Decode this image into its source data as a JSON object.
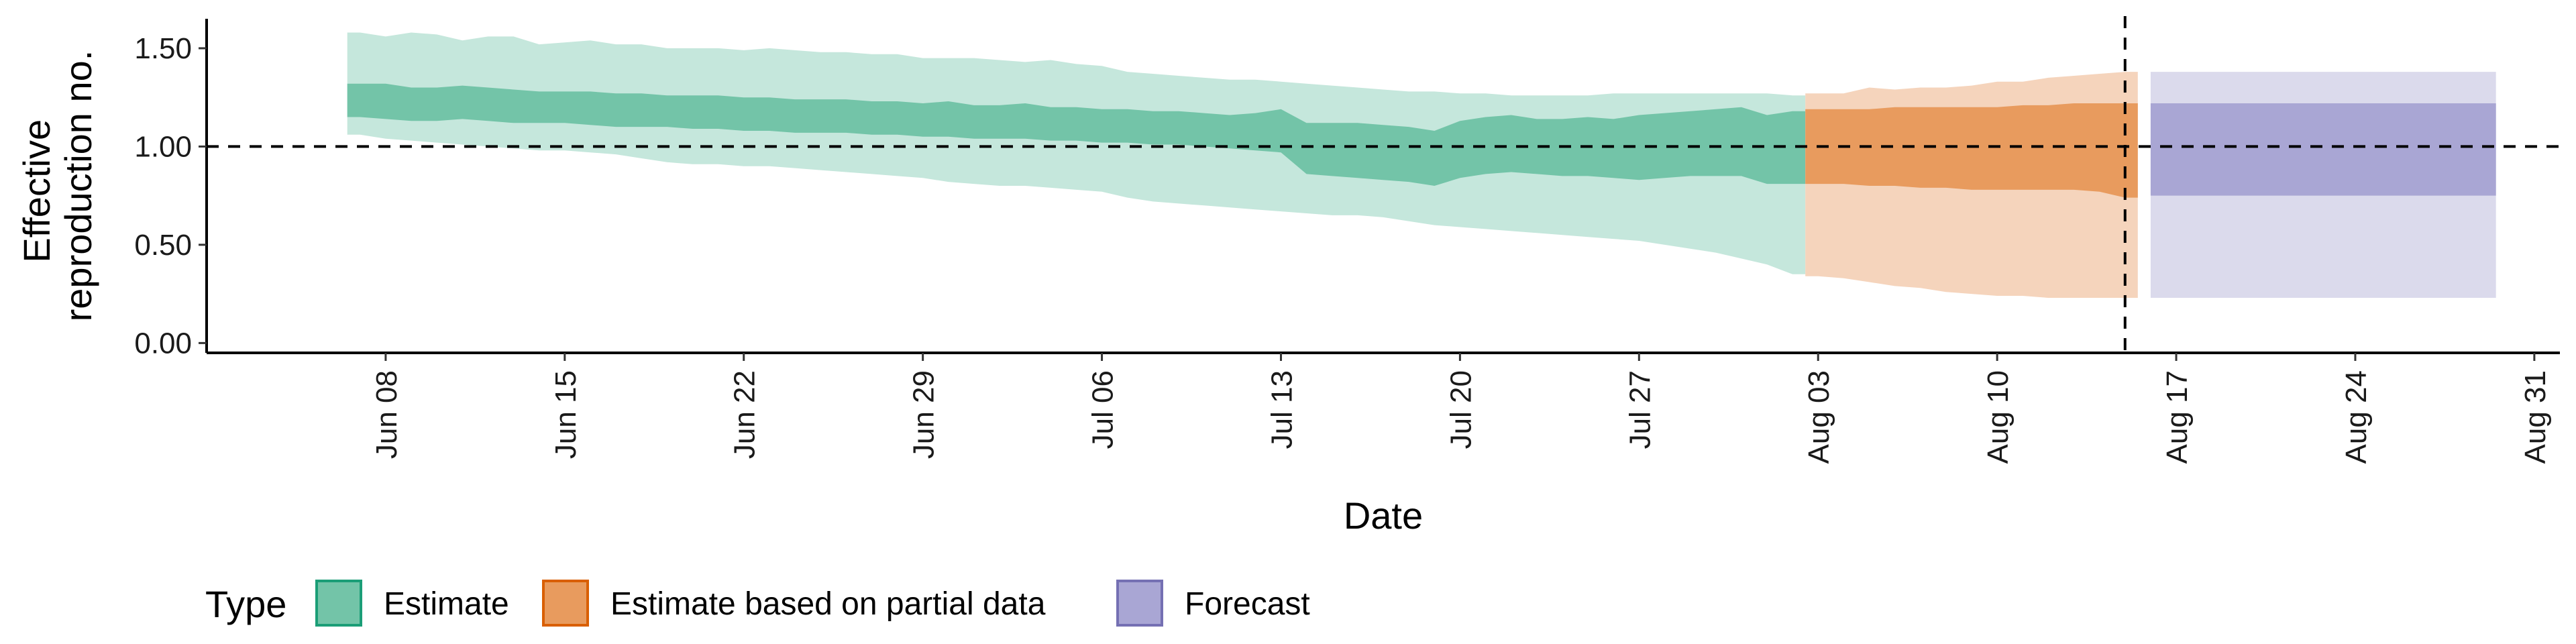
{
  "chart_data": {
    "type": "area",
    "xlabel": "Date",
    "ylabel_lines": [
      "Effective",
      "reproduction no."
    ],
    "x_type": "date",
    "xlim": [
      "2020-06-01",
      "2020-09-01"
    ],
    "ylim": [
      -0.05,
      1.65
    ],
    "y_ticks": [
      0.0,
      0.5,
      1.0,
      1.5
    ],
    "y_tick_labels": [
      "0.00",
      "0.50",
      "1.00",
      "1.50"
    ],
    "x_ticks": [
      "2020-06-08",
      "2020-06-15",
      "2020-06-22",
      "2020-06-29",
      "2020-07-06",
      "2020-07-13",
      "2020-07-20",
      "2020-07-27",
      "2020-08-03",
      "2020-08-10",
      "2020-08-17",
      "2020-08-24",
      "2020-08-31"
    ],
    "x_tick_labels": [
      "Jun 08",
      "Jun 15",
      "Jun 22",
      "Jun 29",
      "Jul 06",
      "Jul 13",
      "Jul 20",
      "Jul 27",
      "Aug 03",
      "Aug 10",
      "Aug 17",
      "Aug 24",
      "Aug 31"
    ],
    "reference_line_y": 1.0,
    "reference_line_x": "2020-08-15",
    "legend_title": "Type",
    "legend_position": "bottom-left",
    "series": [
      {
        "name": "Estimate",
        "color_dark": "#73c4a8",
        "color_light": "#c5e7dc",
        "x": [
          "2020-06-07",
          "2020-06-08",
          "2020-06-09",
          "2020-06-10",
          "2020-06-11",
          "2020-06-12",
          "2020-06-13",
          "2020-06-14",
          "2020-06-15",
          "2020-06-16",
          "2020-06-17",
          "2020-06-18",
          "2020-06-19",
          "2020-06-20",
          "2020-06-21",
          "2020-06-22",
          "2020-06-23",
          "2020-06-24",
          "2020-06-25",
          "2020-06-26",
          "2020-06-27",
          "2020-06-28",
          "2020-06-29",
          "2020-06-30",
          "2020-07-01",
          "2020-07-02",
          "2020-07-03",
          "2020-07-04",
          "2020-07-05",
          "2020-07-06",
          "2020-07-07",
          "2020-07-08",
          "2020-07-09",
          "2020-07-10",
          "2020-07-11",
          "2020-07-12",
          "2020-07-13",
          "2020-07-14",
          "2020-07-15",
          "2020-07-16",
          "2020-07-17",
          "2020-07-18",
          "2020-07-19",
          "2020-07-20",
          "2020-07-21",
          "2020-07-22",
          "2020-07-23",
          "2020-07-24",
          "2020-07-25",
          "2020-07-26",
          "2020-07-27",
          "2020-07-28",
          "2020-07-29",
          "2020-07-30",
          "2020-07-31",
          "2020-08-01",
          "2020-08-02"
        ],
        "upper90": [
          1.58,
          1.56,
          1.58,
          1.57,
          1.54,
          1.56,
          1.56,
          1.52,
          1.53,
          1.54,
          1.52,
          1.52,
          1.5,
          1.5,
          1.5,
          1.49,
          1.5,
          1.49,
          1.48,
          1.48,
          1.47,
          1.47,
          1.45,
          1.45,
          1.45,
          1.44,
          1.43,
          1.44,
          1.42,
          1.41,
          1.38,
          1.37,
          1.36,
          1.35,
          1.34,
          1.34,
          1.33,
          1.32,
          1.31,
          1.3,
          1.29,
          1.28,
          1.28,
          1.27,
          1.27,
          1.26,
          1.26,
          1.26,
          1.26,
          1.27,
          1.27,
          1.27,
          1.27,
          1.27,
          1.27,
          1.27,
          1.26
        ],
        "upper50": [
          1.32,
          1.32,
          1.3,
          1.3,
          1.31,
          1.3,
          1.29,
          1.28,
          1.28,
          1.28,
          1.27,
          1.27,
          1.26,
          1.26,
          1.26,
          1.25,
          1.25,
          1.24,
          1.24,
          1.24,
          1.23,
          1.23,
          1.22,
          1.23,
          1.21,
          1.21,
          1.22,
          1.2,
          1.2,
          1.19,
          1.19,
          1.18,
          1.18,
          1.17,
          1.16,
          1.17,
          1.19,
          1.12,
          1.12,
          1.12,
          1.11,
          1.1,
          1.08,
          1.13,
          1.15,
          1.16,
          1.14,
          1.14,
          1.15,
          1.14,
          1.16,
          1.17,
          1.18,
          1.19,
          1.2,
          1.16,
          1.18
        ],
        "lower50": [
          1.15,
          1.14,
          1.13,
          1.13,
          1.14,
          1.13,
          1.12,
          1.12,
          1.12,
          1.11,
          1.1,
          1.1,
          1.1,
          1.09,
          1.09,
          1.08,
          1.08,
          1.07,
          1.07,
          1.07,
          1.06,
          1.06,
          1.05,
          1.05,
          1.04,
          1.04,
          1.04,
          1.03,
          1.03,
          1.02,
          1.02,
          1.01,
          1.01,
          1.0,
          0.99,
          0.98,
          0.97,
          0.86,
          0.85,
          0.84,
          0.83,
          0.82,
          0.8,
          0.84,
          0.86,
          0.87,
          0.86,
          0.85,
          0.85,
          0.84,
          0.83,
          0.84,
          0.85,
          0.85,
          0.85,
          0.81,
          0.81
        ],
        "lower90": [
          1.06,
          1.04,
          1.03,
          1.02,
          1.01,
          1.0,
          0.99,
          0.98,
          0.98,
          0.97,
          0.96,
          0.94,
          0.92,
          0.91,
          0.91,
          0.9,
          0.9,
          0.89,
          0.88,
          0.87,
          0.86,
          0.85,
          0.84,
          0.82,
          0.81,
          0.8,
          0.8,
          0.79,
          0.78,
          0.77,
          0.74,
          0.72,
          0.71,
          0.7,
          0.69,
          0.68,
          0.67,
          0.66,
          0.65,
          0.65,
          0.64,
          0.62,
          0.6,
          0.59,
          0.58,
          0.57,
          0.56,
          0.55,
          0.54,
          0.53,
          0.52,
          0.5,
          0.48,
          0.46,
          0.43,
          0.4,
          0.35
        ]
      },
      {
        "name": "Estimate based on partial data",
        "color_dark": "#e89b5e",
        "color_light": "#f5d4bc",
        "x": [
          "2020-08-03",
          "2020-08-04",
          "2020-08-05",
          "2020-08-06",
          "2020-08-07",
          "2020-08-08",
          "2020-08-09",
          "2020-08-10",
          "2020-08-11",
          "2020-08-12",
          "2020-08-13",
          "2020-08-14",
          "2020-08-15"
        ],
        "upper90": [
          1.27,
          1.27,
          1.3,
          1.29,
          1.3,
          1.3,
          1.31,
          1.33,
          1.33,
          1.35,
          1.36,
          1.37,
          1.38
        ],
        "upper50": [
          1.19,
          1.19,
          1.19,
          1.2,
          1.2,
          1.2,
          1.2,
          1.2,
          1.21,
          1.21,
          1.22,
          1.22,
          1.22
        ],
        "lower50": [
          0.81,
          0.81,
          0.8,
          0.8,
          0.79,
          0.79,
          0.78,
          0.78,
          0.78,
          0.78,
          0.78,
          0.77,
          0.74
        ],
        "lower90": [
          0.34,
          0.33,
          0.31,
          0.29,
          0.28,
          0.26,
          0.25,
          0.24,
          0.24,
          0.23,
          0.23,
          0.23,
          0.23
        ]
      },
      {
        "name": "Forecast",
        "color_dark": "#a9a6d4",
        "color_light": "#dbdaec",
        "x": [
          "2020-08-16",
          "2020-08-29"
        ],
        "upper90": [
          1.38,
          1.38
        ],
        "upper50": [
          1.22,
          1.22
        ],
        "lower50": [
          0.75,
          0.75
        ],
        "lower90": [
          0.23,
          0.23
        ]
      }
    ]
  }
}
